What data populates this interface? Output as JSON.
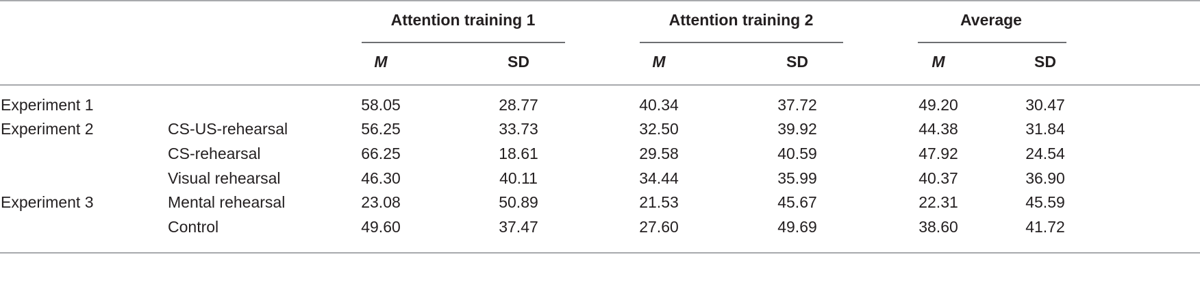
{
  "table": {
    "group_headers": [
      "Attention training 1",
      "Attention training 2",
      "Average"
    ],
    "sub_headers": [
      "M",
      "SD",
      "M",
      "SD",
      "M",
      "SD"
    ],
    "rows": [
      {
        "experiment": "Experiment 1",
        "condition": "",
        "values": [
          "58.05",
          "28.77",
          "40.34",
          "37.72",
          "49.20",
          "30.47"
        ]
      },
      {
        "experiment": "Experiment 2",
        "condition": "CS-US-rehearsal",
        "values": [
          "56.25",
          "33.73",
          "32.50",
          "39.92",
          "44.38",
          "31.84"
        ]
      },
      {
        "experiment": "",
        "condition": "CS-rehearsal",
        "values": [
          "66.25",
          "18.61",
          "29.58",
          "40.59",
          "47.92",
          "24.54"
        ]
      },
      {
        "experiment": "",
        "condition": "Visual rehearsal",
        "values": [
          "46.30",
          "40.11",
          "34.44",
          "35.99",
          "40.37",
          "36.90"
        ]
      },
      {
        "experiment": "Experiment 3",
        "condition": "Mental rehearsal",
        "values": [
          "23.08",
          "50.89",
          "21.53",
          "45.67",
          "22.31",
          "45.59"
        ]
      },
      {
        "experiment": "",
        "condition": "Control",
        "values": [
          "49.60",
          "37.47",
          "27.60",
          "49.69",
          "38.60",
          "41.72"
        ]
      }
    ]
  }
}
